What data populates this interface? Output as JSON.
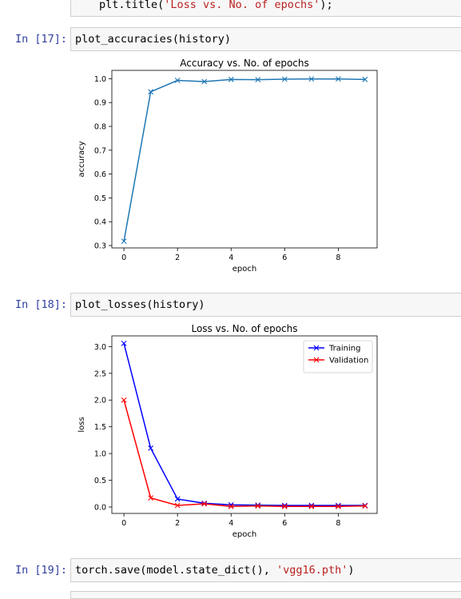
{
  "prev_cell": {
    "code_prefix": "plt.title(",
    "code_string": "'Loss vs. No. of epochs'",
    "code_suffix": ");"
  },
  "cells": [
    {
      "prompt": "In [17]:",
      "code": "plot_accuracies(history)"
    },
    {
      "prompt": "In [18]:",
      "code": "plot_losses(history)"
    },
    {
      "prompt": "In [19]:",
      "code_prefix": "torch.save(model.state_dict(), ",
      "code_string": "'vgg16.pth'",
      "code_suffix": ")"
    }
  ],
  "chart_data": [
    {
      "type": "line",
      "title": "Accuracy vs. No. of epochs",
      "xlabel": "epoch",
      "ylabel": "accuracy",
      "xlim": [
        -0.45,
        9.45
      ],
      "ylim": [
        0.29,
        1.035
      ],
      "xticks": [
        0,
        2,
        4,
        6,
        8
      ],
      "yticks": [
        0.3,
        0.4,
        0.5,
        0.6,
        0.7,
        0.8,
        0.9,
        1.0
      ],
      "ytick_labels": [
        "0.3",
        "0.4",
        "0.5",
        "0.6",
        "0.7",
        "0.8",
        "0.9",
        "1.0"
      ],
      "series": [
        {
          "color": "#1f77b4",
          "marker": "x",
          "x": [
            0,
            1,
            2,
            3,
            4,
            5,
            6,
            7,
            8,
            9
          ],
          "y": [
            0.318,
            0.945,
            0.993,
            0.988,
            0.997,
            0.996,
            0.998,
            0.999,
            0.999,
            0.997
          ]
        }
      ]
    },
    {
      "type": "line",
      "title": "Loss vs. No. of epochs",
      "xlabel": "epoch",
      "ylabel": "loss",
      "xlim": [
        -0.45,
        9.45
      ],
      "ylim": [
        -0.12,
        3.2
      ],
      "xticks": [
        0,
        2,
        4,
        6,
        8
      ],
      "yticks": [
        0.0,
        0.5,
        1.0,
        1.5,
        2.0,
        2.5,
        3.0
      ],
      "ytick_labels": [
        "0.0",
        "0.5",
        "1.0",
        "1.5",
        "2.0",
        "2.5",
        "3.0"
      ],
      "legend": "top-right",
      "series": [
        {
          "name": "Training",
          "color": "#0000ff",
          "marker": "x",
          "x": [
            0,
            1,
            2,
            3,
            4,
            5,
            6,
            7,
            8,
            9
          ],
          "y": [
            3.06,
            1.1,
            0.15,
            0.07,
            0.04,
            0.035,
            0.03,
            0.03,
            0.03,
            0.03
          ]
        },
        {
          "name": "Validation",
          "color": "#ff0000",
          "marker": "x",
          "x": [
            0,
            1,
            2,
            3,
            4,
            5,
            6,
            7,
            8,
            9
          ],
          "y": [
            2.0,
            0.17,
            0.03,
            0.06,
            0.01,
            0.02,
            0.01,
            0.01,
            0.01,
            0.02
          ]
        }
      ]
    }
  ]
}
